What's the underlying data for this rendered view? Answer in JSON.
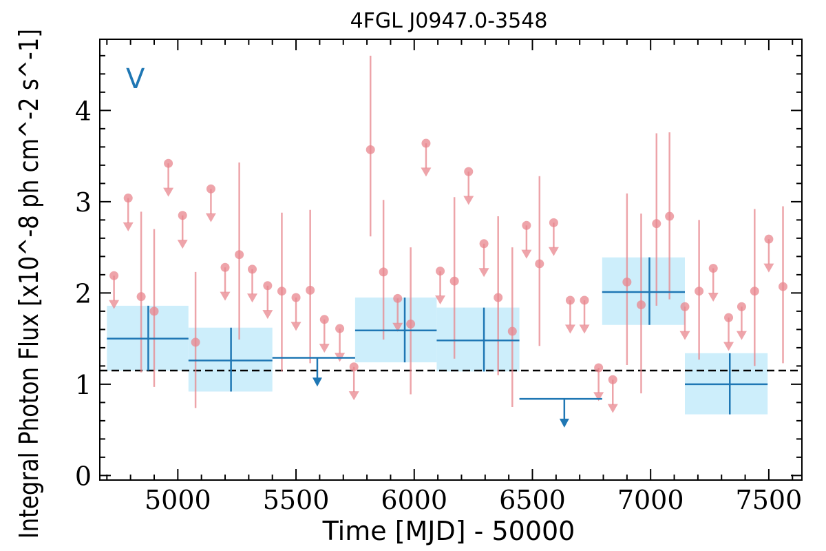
{
  "chart_data": {
    "type": "scatter",
    "title": "4FGL J0947.0-3548",
    "xlabel": "Time [MJD] - 50000",
    "ylabel": "Integral Photon Flux [x10^-8 ph cm^-2 s^-1]",
    "annotation": "V",
    "xlim": [
      4670,
      7640
    ],
    "ylim": [
      -0.05,
      4.78
    ],
    "x_ticks": [
      5000,
      5500,
      6000,
      6500,
      7000,
      7500
    ],
    "y_ticks": [
      0,
      1,
      2,
      3,
      4
    ],
    "reference_level": 1.15,
    "colors": {
      "short_bins": "#e8868d",
      "long_bins": "#1f77b4",
      "long_bins_band": "#cdeefb",
      "reference_line": "#000000"
    },
    "short_bins": {
      "name": "",
      "points": [
        {
          "x": 4730,
          "y": 2.19,
          "upper_limit": true
        },
        {
          "x": 4790,
          "y": 3.04,
          "upper_limit": true
        },
        {
          "x": 4845,
          "y": 1.96,
          "lo": 1.13,
          "hi": 2.89
        },
        {
          "x": 4900,
          "y": 1.8,
          "lo": 0.97,
          "hi": 2.7
        },
        {
          "x": 4960,
          "y": 3.42,
          "upper_limit": true
        },
        {
          "x": 5020,
          "y": 2.85,
          "upper_limit": true
        },
        {
          "x": 5075,
          "y": 1.46,
          "lo": 0.74,
          "hi": 2.23
        },
        {
          "x": 5140,
          "y": 3.14,
          "upper_limit": true
        },
        {
          "x": 5200,
          "y": 2.28,
          "upper_limit": true
        },
        {
          "x": 5260,
          "y": 2.42,
          "lo": 1.49,
          "hi": 3.43
        },
        {
          "x": 5315,
          "y": 2.26,
          "upper_limit": true
        },
        {
          "x": 5380,
          "y": 2.08,
          "upper_limit": true
        },
        {
          "x": 5440,
          "y": 2.02,
          "lo": 1.14,
          "hi": 2.88
        },
        {
          "x": 5500,
          "y": 1.95,
          "upper_limit": true
        },
        {
          "x": 5560,
          "y": 2.03,
          "lo": 1.23,
          "hi": 2.91
        },
        {
          "x": 5620,
          "y": 1.71,
          "upper_limit": true
        },
        {
          "x": 5685,
          "y": 1.61,
          "upper_limit": true
        },
        {
          "x": 5745,
          "y": 1.19,
          "upper_limit": true
        },
        {
          "x": 5815,
          "y": 3.57,
          "lo": 2.62,
          "hi": 4.6
        },
        {
          "x": 5870,
          "y": 2.23,
          "lo": 1.49,
          "hi": 3.02
        },
        {
          "x": 5930,
          "y": 1.94,
          "upper_limit": true
        },
        {
          "x": 5985,
          "y": 1.66,
          "lo": 0.89,
          "hi": 2.5
        },
        {
          "x": 6050,
          "y": 3.64,
          "upper_limit": true
        },
        {
          "x": 6110,
          "y": 2.24,
          "upper_limit": true
        },
        {
          "x": 6170,
          "y": 2.13,
          "lo": 1.28,
          "hi": 3.05
        },
        {
          "x": 6230,
          "y": 3.33,
          "upper_limit": true
        },
        {
          "x": 6295,
          "y": 2.54,
          "upper_limit": true
        },
        {
          "x": 6355,
          "y": 1.95,
          "lo": 1.1,
          "hi": 2.84
        },
        {
          "x": 6415,
          "y": 1.58,
          "lo": 0.75,
          "hi": 2.5
        },
        {
          "x": 6475,
          "y": 2.74,
          "upper_limit": true
        },
        {
          "x": 6530,
          "y": 2.32,
          "lo": 1.42,
          "hi": 3.28
        },
        {
          "x": 6590,
          "y": 2.77,
          "upper_limit": true
        },
        {
          "x": 6660,
          "y": 1.92,
          "upper_limit": true
        },
        {
          "x": 6720,
          "y": 1.92,
          "upper_limit": true
        },
        {
          "x": 6780,
          "y": 1.18,
          "upper_limit": true
        },
        {
          "x": 6840,
          "y": 1.05,
          "upper_limit": true
        },
        {
          "x": 6900,
          "y": 2.12,
          "lo": 1.21,
          "hi": 3.09
        },
        {
          "x": 6960,
          "y": 1.87,
          "lo": 0.9,
          "hi": 2.87
        },
        {
          "x": 7025,
          "y": 2.76,
          "lo": 1.86,
          "hi": 3.75
        },
        {
          "x": 7080,
          "y": 2.84,
          "lo": 1.93,
          "hi": 3.76
        },
        {
          "x": 7145,
          "y": 1.85,
          "upper_limit": true
        },
        {
          "x": 7205,
          "y": 2.02,
          "lo": 1.27,
          "hi": 2.8
        },
        {
          "x": 7265,
          "y": 2.27,
          "upper_limit": true
        },
        {
          "x": 7330,
          "y": 1.73,
          "upper_limit": true
        },
        {
          "x": 7385,
          "y": 1.85,
          "upper_limit": true
        },
        {
          "x": 7440,
          "y": 2.02,
          "lo": 1.2,
          "hi": 2.92
        },
        {
          "x": 7500,
          "y": 2.59,
          "upper_limit": true
        },
        {
          "x": 7560,
          "y": 2.07,
          "lo": 1.23,
          "hi": 2.95
        }
      ]
    },
    "long_bins": {
      "name": "",
      "points": [
        {
          "x0": 4700,
          "x1": 5045,
          "xc": 4875,
          "y": 1.5,
          "lo": 1.15,
          "hi": 1.86,
          "upper_limit": false
        },
        {
          "x0": 5045,
          "x1": 5400,
          "xc": 5225,
          "y": 1.26,
          "lo": 0.92,
          "hi": 1.62,
          "upper_limit": false
        },
        {
          "x0": 5400,
          "x1": 5750,
          "xc": 5590,
          "y": 1.29,
          "upper_limit": true
        },
        {
          "x0": 5750,
          "x1": 6095,
          "xc": 5960,
          "y": 1.59,
          "lo": 1.24,
          "hi": 1.95,
          "upper_limit": false
        },
        {
          "x0": 6095,
          "x1": 6445,
          "xc": 6295,
          "y": 1.48,
          "lo": 1.14,
          "hi": 1.84,
          "upper_limit": false
        },
        {
          "x0": 6445,
          "x1": 6795,
          "xc": 6635,
          "y": 0.84,
          "upper_limit": true
        },
        {
          "x0": 6795,
          "x1": 7145,
          "xc": 6995,
          "y": 2.01,
          "lo": 1.65,
          "hi": 2.39,
          "upper_limit": false
        },
        {
          "x0": 7145,
          "x1": 7495,
          "xc": 7335,
          "y": 1.0,
          "lo": 0.67,
          "hi": 1.34,
          "upper_limit": false
        }
      ]
    }
  }
}
